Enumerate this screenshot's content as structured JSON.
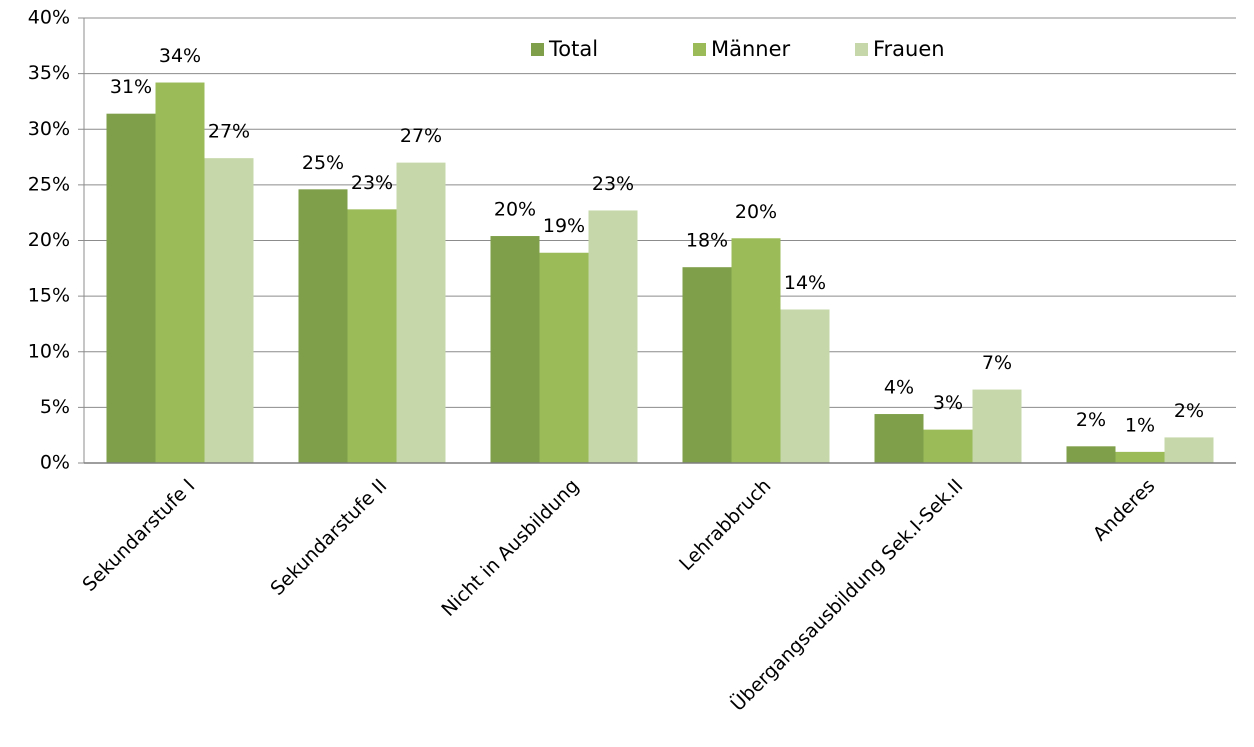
{
  "chart_data": {
    "type": "bar",
    "categories": [
      "Sekundarstufe I",
      "Sekundarstufe II",
      "Nicht in Ausbildung",
      "Lehrabbruch",
      "Übergangsausbildung Sek.I-Sek.II",
      "Anderes"
    ],
    "series": [
      {
        "name": "Total",
        "color": "#7f9f4a",
        "values": [
          31.4,
          24.6,
          20.4,
          17.6,
          4.4,
          1.5
        ],
        "value_labels": [
          "31%",
          "25%",
          "20%",
          "18%",
          "4%",
          "2%"
        ]
      },
      {
        "name": "Männer",
        "color": "#9bbb59",
        "values": [
          34.2,
          22.8,
          18.9,
          20.2,
          3.0,
          1.0
        ],
        "value_labels": [
          "34%",
          "23%",
          "19%",
          "20%",
          "3%",
          "1%"
        ]
      },
      {
        "name": "Frauen",
        "color": "#c6d7a9",
        "values": [
          27.4,
          27.0,
          22.7,
          13.8,
          6.6,
          2.3
        ],
        "value_labels": [
          "27%",
          "27%",
          "23%",
          "14%",
          "7%",
          "2%"
        ]
      }
    ],
    "ylim": [
      0,
      40
    ],
    "yticks": [
      {
        "value": 0,
        "label": "0%"
      },
      {
        "value": 5,
        "label": "5%"
      },
      {
        "value": 10,
        "label": "10%"
      },
      {
        "value": 15,
        "label": "15%"
      },
      {
        "value": 20,
        "label": "20%"
      },
      {
        "value": 25,
        "label": "25%"
      },
      {
        "value": 30,
        "label": "30%"
      },
      {
        "value": 35,
        "label": "35%"
      },
      {
        "value": 40,
        "label": "40%"
      }
    ],
    "grid": true,
    "legend": "top"
  }
}
